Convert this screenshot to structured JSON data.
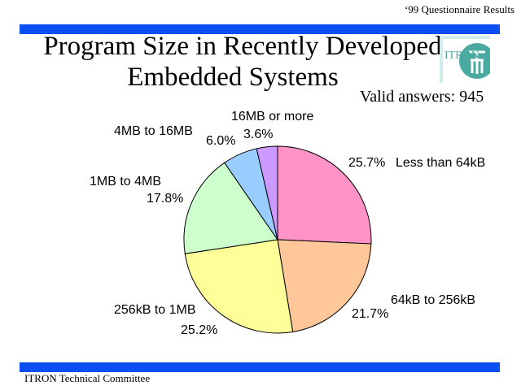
{
  "header_note": "‘99 Questionnaire Results",
  "title_lines": [
    "Program Size in Recently Developed",
    "Embedded Systems"
  ],
  "subtitle": "Valid answers: 945",
  "logo_text": "ITRON",
  "footer": "ITRON Technical Committee",
  "colors": {
    "bar": "#0b4ff2",
    "logo": "#4aa9a0"
  },
  "chart_data": {
    "type": "pie",
    "title": "Program Size in Recently Developed Embedded Systems",
    "subtitle": "Valid answers: 945",
    "slices": [
      {
        "label": "Less than 64kB",
        "value": 25.7,
        "pct_text": "25.7%",
        "color": "#ff93c8"
      },
      {
        "label": "64kB to 256kB",
        "value": 21.7,
        "pct_text": "21.7%",
        "color": "#ffc79a"
      },
      {
        "label": "256kB to 1MB",
        "value": 25.2,
        "pct_text": "25.2%",
        "color": "#ffff9a"
      },
      {
        "label": "1MB to 4MB",
        "value": 17.8,
        "pct_text": "17.8%",
        "color": "#ccffcc"
      },
      {
        "label": "4MB to 16MB",
        "value": 6.0,
        "pct_text": "6.0%",
        "color": "#99ccff"
      },
      {
        "label": "16MB or more",
        "value": 3.6,
        "pct_text": "3.6%",
        "color": "#cc99ff"
      }
    ]
  }
}
